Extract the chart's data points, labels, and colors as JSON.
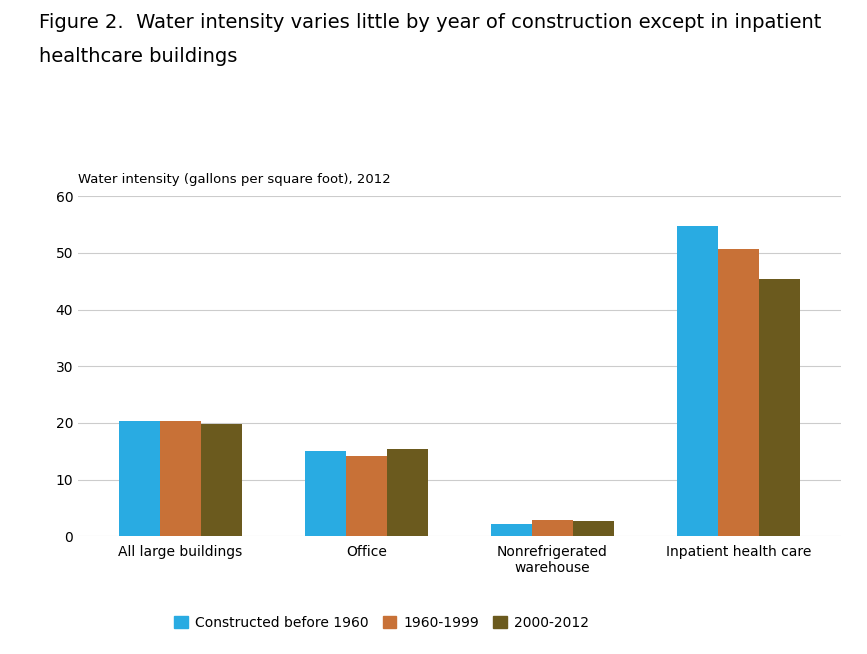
{
  "title_line1": "Figure 2.  Water intensity varies little by year of construction except in inpatient",
  "title_line2": "healthcare buildings",
  "ylabel": "Water intensity (gallons per square foot), 2012",
  "ylim": [
    0,
    60
  ],
  "yticks": [
    0,
    10,
    20,
    30,
    40,
    50,
    60
  ],
  "categories": [
    "All large buildings",
    "Office",
    "Nonrefrigerated\nwarehouse",
    "Inpatient health care"
  ],
  "series": {
    "Constructed before 1960": [
      20.3,
      15.1,
      2.2,
      54.7
    ],
    "1960-1999": [
      20.4,
      14.2,
      2.8,
      50.7
    ],
    "2000-2012": [
      19.8,
      15.4,
      2.7,
      45.4
    ]
  },
  "colors": {
    "Constructed before 1960": "#29ABE2",
    "1960-1999": "#C87137",
    "2000-2012": "#6B5A1E"
  },
  "bar_width": 0.22,
  "background_color": "#FFFFFF",
  "grid_color": "#CCCCCC",
  "title_fontsize": 14,
  "label_fontsize": 9.5,
  "tick_fontsize": 10,
  "legend_fontsize": 10
}
